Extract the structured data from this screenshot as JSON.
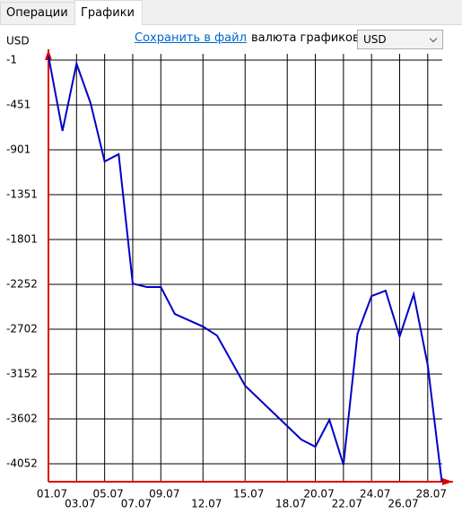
{
  "tabs": [
    "Операции",
    "Графики"
  ],
  "save_link": "Сохранить в файл",
  "currency_label": "валюта графиков",
  "currency_select": "USD",
  "chart_data": {
    "type": "line",
    "y_label": "USD",
    "x": [
      1,
      2,
      3,
      4,
      5,
      6,
      7,
      8,
      9,
      10,
      12,
      13,
      15,
      19,
      20,
      21,
      22,
      23,
      24,
      25,
      26,
      27,
      28,
      29
    ],
    "series": [
      {
        "name": null,
        "color": "#0000c8",
        "values": [
          40,
          -712,
          -37,
          -433,
          -1018,
          -946,
          -2243,
          -2279,
          -2279,
          -2549,
          -2675,
          -2765,
          -3269,
          -3809,
          -3881,
          -3611,
          -4061,
          -2747,
          -2369,
          -2315,
          -2774,
          -2351,
          -3062,
          -4230
        ]
      }
    ],
    "xlim": [
      1,
      29.8
    ],
    "ylim": [
      -4232,
      107
    ],
    "xticks": [
      {
        "value": 1,
        "label": "01.07"
      },
      {
        "value": 3,
        "label": "03.07"
      },
      {
        "value": 5,
        "label": "05.07"
      },
      {
        "value": 7,
        "label": "07.07"
      },
      {
        "value": 9,
        "label": "09.07"
      },
      {
        "value": 12,
        "label": "12.07"
      },
      {
        "value": 15,
        "label": "15.07"
      },
      {
        "value": 18,
        "label": "18.07"
      },
      {
        "value": 20,
        "label": "20.07"
      },
      {
        "value": 22,
        "label": "22.07"
      },
      {
        "value": 24,
        "label": "24.07"
      },
      {
        "value": 26,
        "label": "26.07"
      },
      {
        "value": 28,
        "label": "28.07"
      }
    ],
    "yticks": [
      -1,
      -451,
      -901,
      -1351,
      -1801,
      -2252,
      -2702,
      -3152,
      -3602,
      -4052
    ],
    "grid": true,
    "axis_color": "#e00000"
  }
}
